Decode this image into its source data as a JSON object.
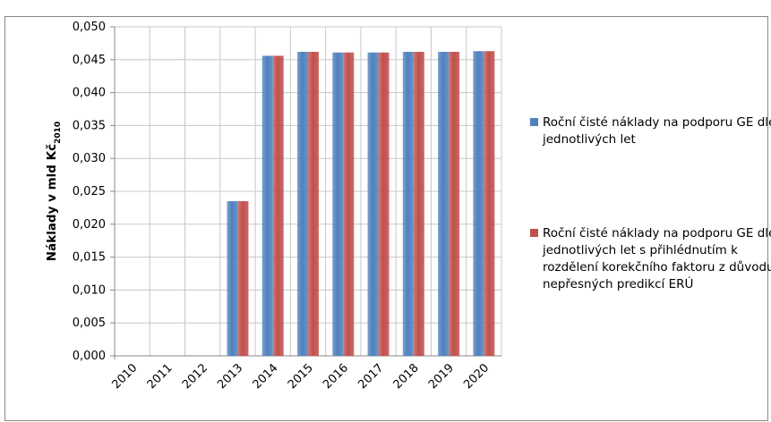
{
  "chart_data": {
    "type": "bar",
    "y_label": "Náklady v mld Kč",
    "y_label_subscript": "2010",
    "categories": [
      "2010",
      "2011",
      "2012",
      "2013",
      "2014",
      "2015",
      "2016",
      "2017",
      "2018",
      "2019",
      "2020"
    ],
    "series": [
      {
        "name": "Roční čisté náklady na podporu GE dle jednotlivých let",
        "color": "#4f81bd",
        "values": [
          0,
          0,
          0,
          0.0235,
          0.0456,
          0.0462,
          0.0461,
          0.0461,
          0.0462,
          0.0462,
          0.0463
        ]
      },
      {
        "name": "Roční čisté náklady na podporu GE dle jednotlivých let s přihlédnutím k rozdělení korekčního faktoru z důvodu nepřesných predikcí ERÚ",
        "color": "#c0504d",
        "values": [
          0,
          0,
          0,
          0.0235,
          0.0456,
          0.0462,
          0.0461,
          0.0461,
          0.0462,
          0.0462,
          0.0463
        ]
      }
    ],
    "ylim": [
      0,
      0.05
    ],
    "yticks": [
      {
        "value": 0,
        "label": "0,000"
      },
      {
        "value": 0.005,
        "label": "0,005"
      },
      {
        "value": 0.01,
        "label": "0,010"
      },
      {
        "value": 0.015,
        "label": "0,015"
      },
      {
        "value": 0.02,
        "label": "0,020"
      },
      {
        "value": 0.025,
        "label": "0,025"
      },
      {
        "value": 0.03,
        "label": "0,030"
      },
      {
        "value": 0.035,
        "label": "0,035"
      },
      {
        "value": 0.04,
        "label": "0,040"
      },
      {
        "value": 0.045,
        "label": "0,045"
      },
      {
        "value": 0.05,
        "label": "0,050"
      }
    ],
    "grid": true,
    "legend": "right"
  }
}
